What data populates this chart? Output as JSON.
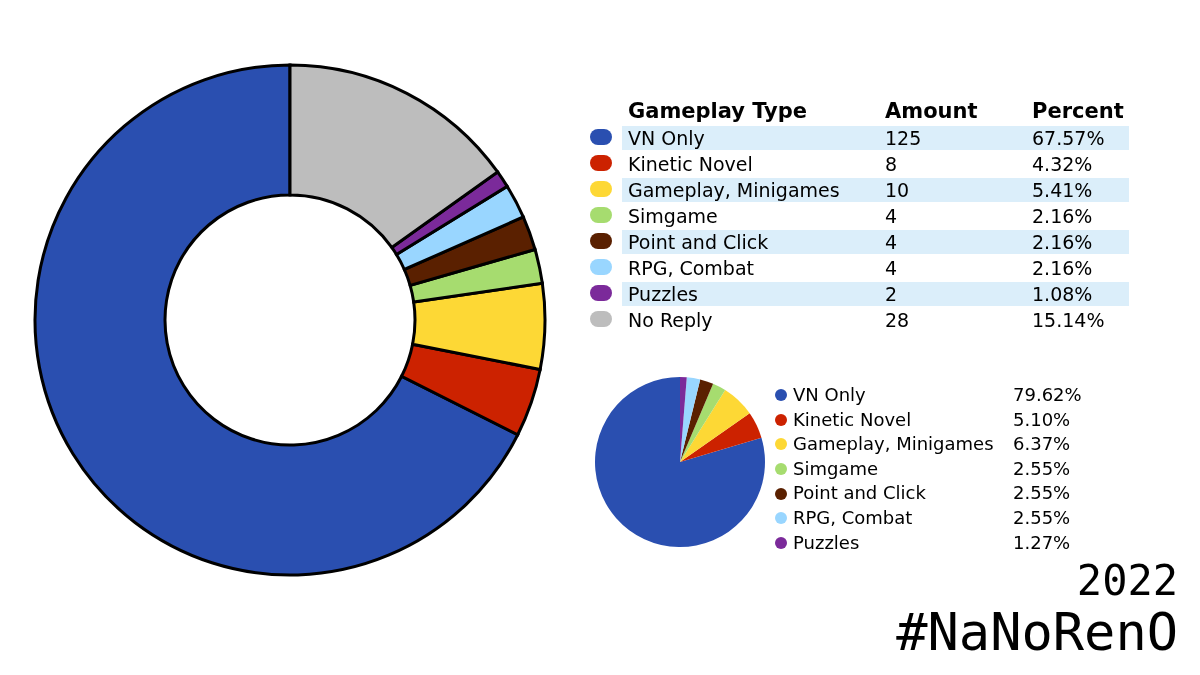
{
  "chart_data": [
    {
      "type": "donut",
      "legend_title": "Gameplay Type",
      "legend": "right",
      "annotations": [
        "Amount",
        "Percent",
        "125",
        "8",
        "10",
        "4",
        "4",
        "4",
        "2",
        "28"
      ],
      "categories": [
        "VN Only",
        "Kinetic Novel",
        "Gameplay, Minigames",
        "Simgame",
        "Point and Click",
        "RPG, Combat",
        "Puzzles",
        "No Reply"
      ],
      "values": [
        67.57,
        4.32,
        5.41,
        2.16,
        2.16,
        2.16,
        1.08,
        15.14
      ],
      "value_labels": [
        "67.57%",
        "4.32%",
        "5.41%",
        "2.16%",
        "2.16%",
        "2.16%",
        "1.08%",
        "15.14%"
      ],
      "colors": [
        "#2a4fb0",
        "#cc2200",
        "#fdd835",
        "#a6dc6f",
        "#5a2000",
        "#99d6ff",
        "#7b2a9a",
        "#bdbdbd"
      ]
    },
    {
      "type": "pie",
      "legend": "right",
      "annotations": [
        "2022",
        "#NaNoRenO"
      ],
      "categories": [
        "VN Only",
        "Kinetic Novel",
        "Gameplay, Minigames",
        "Simgame",
        "Point and Click",
        "RPG, Combat",
        "Puzzles"
      ],
      "values": [
        79.62,
        5.1,
        6.37,
        2.55,
        2.55,
        2.55,
        1.27
      ],
      "value_labels": [
        "79.62%",
        "5.10%",
        "6.37%",
        "2.55%",
        "2.55%",
        "2.55%",
        "1.27%"
      ],
      "colors": [
        "#2a4fb0",
        "#cc2200",
        "#fdd835",
        "#a6dc6f",
        "#5a2000",
        "#99d6ff",
        "#7b2a9a"
      ]
    }
  ]
}
